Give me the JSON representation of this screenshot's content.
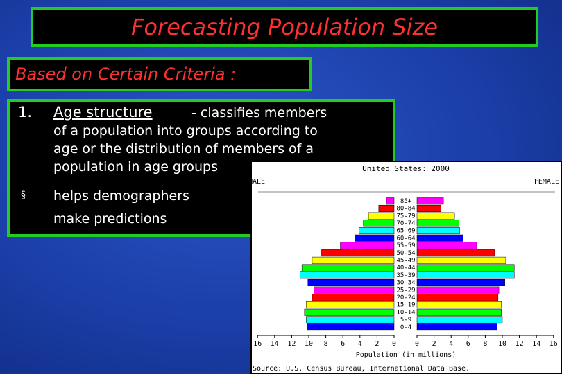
{
  "header": {
    "title": "Forecasting Population Size",
    "subtitle": "Based on Certain Criteria :"
  },
  "points": [
    {
      "number": "1.",
      "term": "Age structure",
      "lines": [
        "- classifies members",
        "of a population into groups according to",
        "age or the distribution of members of a",
        "population in age groups"
      ]
    },
    {
      "number": "§",
      "lines": [
        "helps demographers",
        "make predictions"
      ]
    }
  ],
  "pyramid": {
    "type": "population-pyramid",
    "title": "United States: 2000",
    "left_label": "MALE",
    "right_label": "FEMALE",
    "xlabel": "Population (in millions)",
    "source": "Source: U.S. Census Bureau, International Data Base.",
    "categories": [
      "85+",
      "80-84",
      "75-79",
      "70-74",
      "65-69",
      "60-64",
      "55-59",
      "50-54",
      "45-49",
      "40-44",
      "35-39",
      "30-34",
      "25-29",
      "20-24",
      "15-19",
      "10-14",
      "5-9",
      "0-4"
    ],
    "colors": [
      "#ff00ff",
      "#ff0000",
      "#ffff00",
      "#00ff00",
      "#00ffff",
      "#0000ff"
    ],
    "series": [
      {
        "name": "Male",
        "side": "left",
        "values": [
          0.9,
          1.8,
          3.0,
          3.6,
          4.1,
          4.6,
          6.3,
          8.5,
          9.6,
          10.8,
          11.0,
          10.1,
          9.4,
          9.6,
          10.3,
          10.5,
          10.3,
          10.2
        ]
      },
      {
        "name": "Female",
        "side": "right",
        "values": [
          3.1,
          2.8,
          4.4,
          4.9,
          5.0,
          5.4,
          7.0,
          9.1,
          10.4,
          11.4,
          11.4,
          10.3,
          9.6,
          9.5,
          9.9,
          9.9,
          10.0,
          9.4
        ]
      }
    ],
    "xlim": [
      0,
      16
    ],
    "xticks": [
      16,
      14,
      12,
      10,
      8,
      6,
      4,
      2,
      0
    ]
  }
}
